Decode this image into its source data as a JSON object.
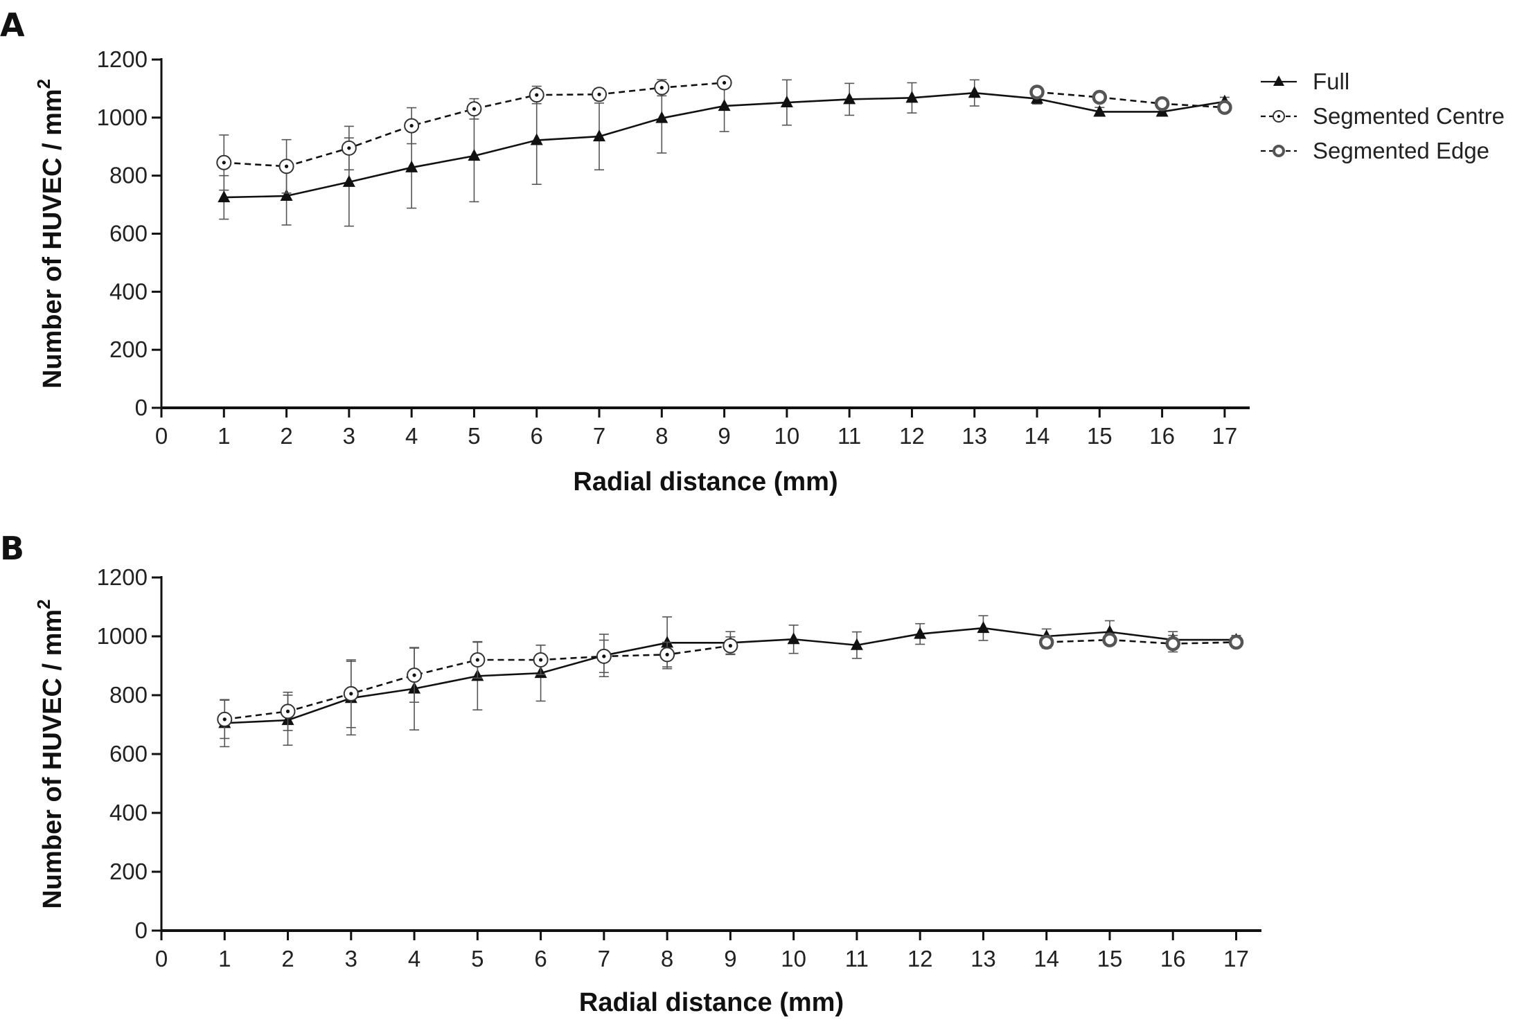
{
  "chart_data": [
    {
      "type": "line",
      "panel_label": "A",
      "xlabel": "Radial distance (mm)",
      "ylabel": "Number of HUVEC / mm",
      "ylabel_superscript": "2",
      "xlim": [
        0,
        17.4
      ],
      "ylim": [
        0,
        1200
      ],
      "xticks": [
        "0",
        "1",
        "2",
        "3",
        "4",
        "5",
        "6",
        "7",
        "8",
        "9",
        "10",
        "11",
        "12",
        "13",
        "14",
        "15",
        "16",
        "17"
      ],
      "yticks": [
        "0",
        "200",
        "400",
        "600",
        "800",
        "1000",
        "1200"
      ],
      "grid": false,
      "legend_position": "top-right",
      "series": [
        {
          "name": "Full",
          "marker": "triangle",
          "line_style": "solid",
          "x": [
            1,
            2,
            3,
            4,
            5,
            6,
            7,
            8,
            9,
            10,
            11,
            12,
            13,
            14,
            15,
            16,
            17
          ],
          "values": [
            725,
            730,
            778,
            828,
            868,
            922,
            935,
            998,
            1040,
            1052,
            1063,
            1068,
            1085,
            1065,
            1020,
            1020,
            1055
          ],
          "errors": [
            75,
            100,
            152,
            140,
            158,
            152,
            115,
            120,
            88,
            78,
            55,
            52,
            45,
            18,
            15,
            12,
            15
          ]
        },
        {
          "name": "Segmented Centre",
          "marker": "circle-dot",
          "line_style": "dashed",
          "x": [
            1,
            2,
            3,
            4,
            5,
            6,
            7,
            8,
            9
          ],
          "values": [
            845,
            832,
            895,
            972,
            1030,
            1078,
            1080,
            1103,
            1120
          ],
          "errors": [
            95,
            92,
            75,
            62,
            35,
            30,
            20,
            28,
            12
          ]
        },
        {
          "name": "Segmented Edge",
          "marker": "circle-bold",
          "line_style": "dashed",
          "x": [
            14,
            15,
            16,
            17
          ],
          "values": [
            1088,
            1070,
            1048,
            1035
          ],
          "errors": [
            15,
            18,
            12,
            12
          ]
        }
      ]
    },
    {
      "type": "line",
      "panel_label": "B",
      "xlabel": "Radial distance (mm)",
      "ylabel": "Number of HUVEC / mm",
      "ylabel_superscript": "2",
      "xlim": [
        0,
        17.4
      ],
      "ylim": [
        0,
        1200
      ],
      "xticks": [
        "0",
        "1",
        "2",
        "3",
        "4",
        "5",
        "6",
        "7",
        "8",
        "9",
        "10",
        "11",
        "12",
        "13",
        "14",
        "15",
        "16",
        "17"
      ],
      "yticks": [
        "0",
        "200",
        "400",
        "600",
        "800",
        "1000",
        "1200"
      ],
      "grid": false,
      "series": [
        {
          "name": "Full",
          "marker": "triangle",
          "line_style": "solid",
          "x": [
            1,
            2,
            3,
            4,
            5,
            6,
            7,
            8,
            9,
            10,
            11,
            12,
            13,
            14,
            15,
            16,
            17
          ],
          "values": [
            705,
            715,
            790,
            822,
            865,
            875,
            935,
            978,
            978,
            990,
            970,
            1008,
            1028,
            1000,
            1015,
            988,
            988
          ],
          "errors": [
            80,
            85,
            125,
            140,
            115,
            95,
            72,
            88,
            38,
            48,
            45,
            35,
            42,
            25,
            38,
            28,
            15
          ]
        },
        {
          "name": "Segmented Centre",
          "marker": "circle-dot",
          "line_style": "dashed",
          "x": [
            1,
            2,
            3,
            4,
            5,
            6,
            7,
            8,
            9
          ],
          "values": [
            718,
            745,
            805,
            868,
            920,
            920,
            932,
            938,
            968
          ],
          "errors": [
            65,
            65,
            115,
            92,
            62,
            50,
            55,
            42,
            30
          ]
        },
        {
          "name": "Segmented Edge",
          "marker": "circle-bold",
          "line_style": "dashed",
          "x": [
            14,
            15,
            16,
            17
          ],
          "values": [
            980,
            988,
            975,
            980
          ],
          "errors": [
            20,
            18,
            28,
            12
          ]
        }
      ]
    }
  ]
}
